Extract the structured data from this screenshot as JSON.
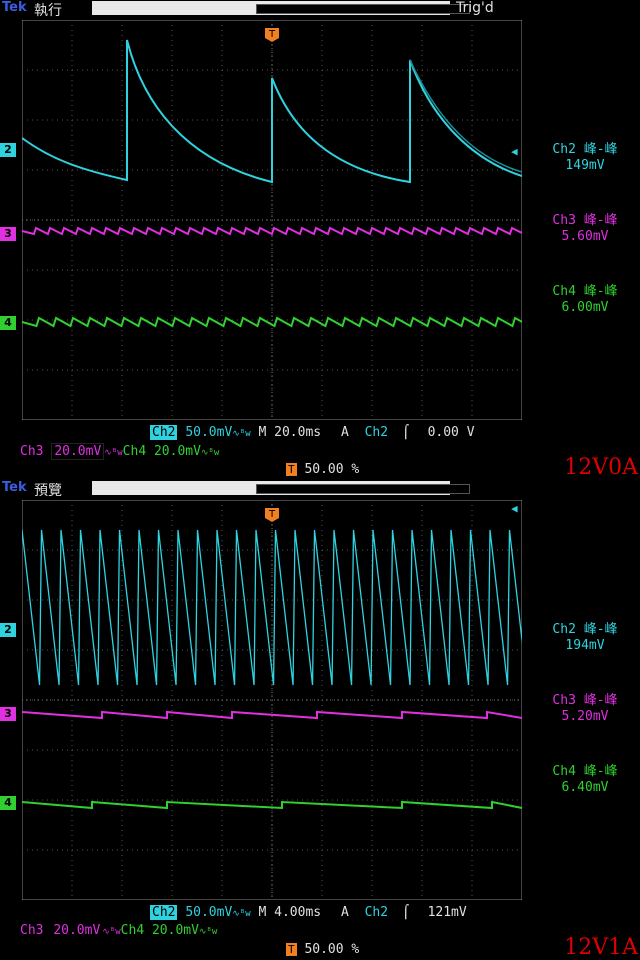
{
  "top": {
    "brand": "Tek",
    "mode": "執行",
    "trigger_status": "Trig'd",
    "measurements": [
      {
        "label": "Ch2 峰-峰",
        "value": "149mV",
        "color": "#2fd3e0"
      },
      {
        "label": "Ch3 峰-峰",
        "value": "5.60mV",
        "color": "#e030e0"
      },
      {
        "label": "Ch4 峰-峰",
        "value": "6.00mV",
        "color": "#30d030"
      }
    ],
    "ch2_scale": "50.0mV",
    "ch3_scale": "20.0mV",
    "ch4_scale": "20.0mV",
    "timebase": "M 20.0ms",
    "trig_source_prefix": "A",
    "trig_channel": "Ch2",
    "trig_level": "0.00 V",
    "trig_position": "50.00 %",
    "caption": "12V0A"
  },
  "bottom": {
    "brand": "Tek",
    "mode": "預覽",
    "measurements": [
      {
        "label": "Ch2 峰-峰",
        "value": "194mV",
        "color": "#2fd3e0"
      },
      {
        "label": "Ch3 峰-峰",
        "value": "5.20mV",
        "color": "#e030e0"
      },
      {
        "label": "Ch4 峰-峰",
        "value": "6.40mV",
        "color": "#30d030"
      }
    ],
    "ch2_scale": "50.0mV",
    "ch3_scale": "20.0mV",
    "ch4_scale": "20.0mV",
    "timebase": "M 4.00ms",
    "trig_source_prefix": "A",
    "trig_channel": "Ch2",
    "trig_level": "121mV",
    "trig_position": "50.00 %",
    "caption": "12V1A"
  },
  "channel_markers": [
    "2",
    "3",
    "4"
  ],
  "colors": {
    "ch2": "#2fd3e0",
    "ch3": "#e030e0",
    "ch4": "#30d030",
    "trigger": "#f08020"
  }
}
